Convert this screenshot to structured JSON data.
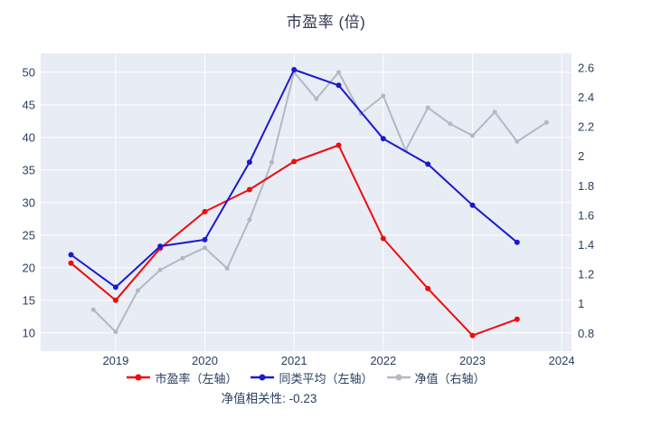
{
  "page": {
    "background": "#ffffff",
    "text_color": "#2a3f5f"
  },
  "chart_data": {
    "type": "line",
    "title": "市盈率 (倍)",
    "annotation": "净值相关性: -0.23",
    "plot_bg": "#e7ecf5",
    "grid_color": "#ffffff",
    "grid": true,
    "legend_position": "bottom",
    "x_axis": {
      "ticks": [
        2019,
        2020,
        2021,
        2022,
        2023,
        2024
      ],
      "range": [
        2018.16,
        2024.11
      ]
    },
    "y_axis_left": {
      "ticks": [
        10,
        15,
        20,
        25,
        30,
        35,
        40,
        45,
        50
      ],
      "range": [
        7.2,
        52.9
      ]
    },
    "y_axis_right": {
      "ticks": [
        0.8,
        1.0,
        1.2,
        1.4,
        1.6,
        1.8,
        2.0,
        2.2,
        2.4,
        2.6
      ],
      "range": [
        0.679,
        2.698
      ]
    },
    "series": [
      {
        "id": "pe-ratio",
        "name": "市盈率（左轴）",
        "color": "#ee0d0d",
        "axis": "left",
        "marker_radius": 3,
        "x": [
          2018.5,
          2019,
          2019.5,
          2020,
          2020.5,
          2021,
          2021.5,
          2022,
          2022.5,
          2023,
          2023.5
        ],
        "y": [
          20.7,
          15.0,
          23.0,
          28.6,
          32.0,
          36.3,
          38.8,
          24.5,
          16.8,
          9.6,
          12.1
        ]
      },
      {
        "id": "peer-average",
        "name": "同类平均（左轴）",
        "color": "#1c1acd",
        "axis": "left",
        "marker_radius": 3,
        "x": [
          2018.5,
          2019,
          2019.5,
          2020,
          2020.5,
          2021,
          2021.5,
          2022,
          2022.5,
          2023,
          2023.5
        ],
        "y": [
          22.0,
          17.0,
          23.3,
          24.3,
          36.2,
          50.4,
          48.0,
          39.8,
          35.9,
          29.6,
          23.9
        ]
      },
      {
        "id": "nav",
        "name": "净值（右轴）",
        "color": "#b2b9c5",
        "axis": "right",
        "marker_radius": 2.5,
        "x": [
          2018.75,
          2019,
          2019.25,
          2019.5,
          2019.75,
          2020,
          2020.25,
          2020.5,
          2020.75,
          2021,
          2021.25,
          2021.5,
          2021.75,
          2022,
          2022.25,
          2022.5,
          2022.75,
          2023,
          2023.25,
          2023.5,
          2023.83
        ],
        "y": [
          0.96,
          0.81,
          1.09,
          1.23,
          1.31,
          1.38,
          1.24,
          1.57,
          1.96,
          2.57,
          2.39,
          2.57,
          2.29,
          2.41,
          2.04,
          2.33,
          2.22,
          2.14,
          2.3,
          2.1,
          2.23
        ]
      }
    ]
  }
}
